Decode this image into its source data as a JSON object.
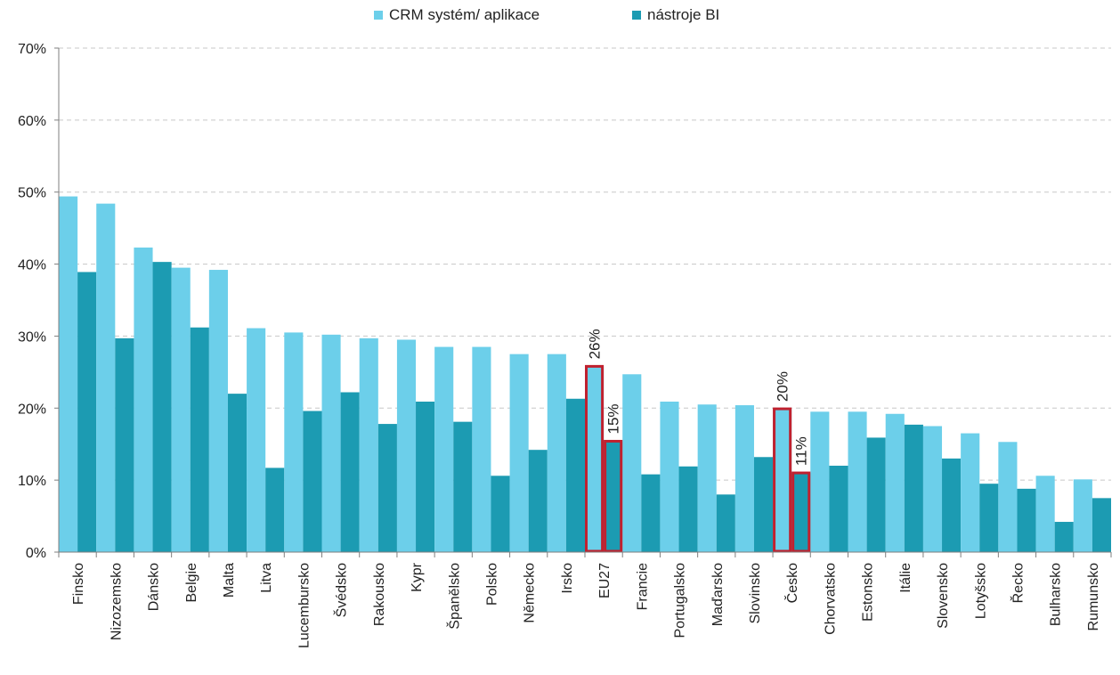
{
  "chart_data": {
    "type": "bar",
    "title": "",
    "xlabel": "",
    "ylabel": "",
    "ylim": [
      0,
      70
    ],
    "y_ticks": [
      0,
      10,
      20,
      30,
      40,
      50,
      60,
      70
    ],
    "y_tick_format": "%",
    "grid": true,
    "legend_position": "top",
    "categories": [
      "Finsko",
      "Nizozemsko",
      "Dánsko",
      "Belgie",
      "Malta",
      "Litva",
      "Lucembursko",
      "Švédsko",
      "Rakousko",
      "Kypr",
      "Španělsko",
      "Polsko",
      "Německo",
      "Irsko",
      "EU27",
      "Francie",
      "Portugalsko",
      "Maďarsko",
      "Slovinsko",
      "Česko",
      "Chorvatsko",
      "Estonsko",
      "Itálie",
      "Slovensko",
      "Lotyšsko",
      "Řecko",
      "Bulharsko",
      "Rumunsko"
    ],
    "series": [
      {
        "name": "CRM systém/ aplikace",
        "color": "#6ccfea",
        "values": [
          49.4,
          48.4,
          42.3,
          39.5,
          39.2,
          31.1,
          30.5,
          30.2,
          29.7,
          29.5,
          28.5,
          28.5,
          27.5,
          27.5,
          25.8,
          24.7,
          20.9,
          20.5,
          20.4,
          19.9,
          19.5,
          19.5,
          19.2,
          17.5,
          16.5,
          15.3,
          10.6,
          10.1
        ]
      },
      {
        "name": "nástroje BI",
        "color": "#1c9bb2",
        "values": [
          38.9,
          29.7,
          40.3,
          31.2,
          22.0,
          11.7,
          19.6,
          22.2,
          17.8,
          20.9,
          18.1,
          10.6,
          14.2,
          21.3,
          15.4,
          10.8,
          11.9,
          8.0,
          13.2,
          11.0,
          12.0,
          15.9,
          17.7,
          13.0,
          9.5,
          8.8,
          4.2,
          7.5
        ]
      }
    ],
    "highlighted": [
      {
        "category": "EU27",
        "labels": [
          "26%",
          "15%"
        ]
      },
      {
        "category": "Česko",
        "labels": [
          "20%",
          "11%"
        ]
      }
    ],
    "highlight_color": "#c0212f",
    "axis_color": "#7f7f7f",
    "grid_color": "#c8c8c8"
  }
}
